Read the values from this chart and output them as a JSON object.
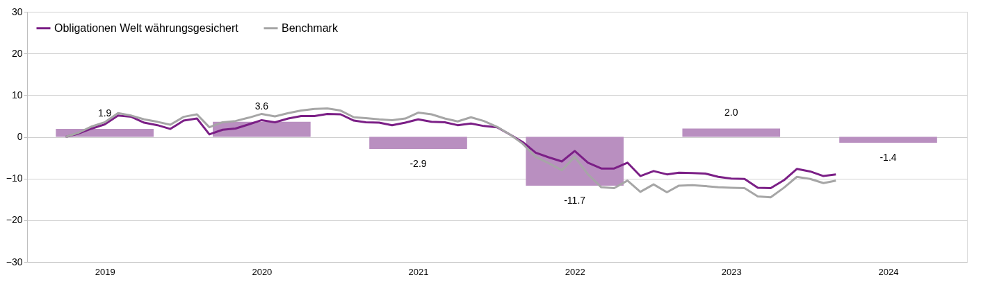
{
  "chart_data": {
    "type": "bar",
    "xlim": [
      "2019-01-01",
      "2025-01-01"
    ],
    "xticks": [
      {
        "value": "2019-07",
        "label": "2019"
      },
      {
        "value": "2020-07",
        "label": "2020"
      },
      {
        "value": "2021-07",
        "label": "2021"
      },
      {
        "value": "2022-07",
        "label": "2022"
      },
      {
        "value": "2023-07",
        "label": "2023"
      },
      {
        "value": "2024-07",
        "label": "2024"
      }
    ],
    "ylim": [
      -30,
      30
    ],
    "yticks": [
      -30,
      -20,
      -10,
      0,
      10,
      20,
      30
    ],
    "grid": "y",
    "legend": "top left",
    "series": [
      {
        "color": "#b98fc0",
        "x": [
          "2019-07",
          "2020-07",
          "2021-07",
          "2022-07",
          "2023-07",
          "2024-07"
        ],
        "values": [
          1.9,
          3.6,
          -2.9,
          -11.7,
          2.0,
          -1.4
        ],
        "value_labels": [
          "1.9",
          "3.6",
          "-2.9",
          "-11.7",
          "2.0",
          "-1.4"
        ]
      },
      {
        "type": "line",
        "name": "Obligationen Welt währungsgesichert",
        "color": "#7b1f86",
        "x": [
          "2019-04",
          "2019-05",
          "2019-06",
          "2019-07",
          "2019-08",
          "2019-09",
          "2019-10",
          "2019-11",
          "2019-12",
          "2020-01",
          "2020-02",
          "2020-03",
          "2020-04",
          "2020-05",
          "2020-06",
          "2020-07",
          "2020-08",
          "2020-09",
          "2020-10",
          "2020-11",
          "2020-12",
          "2021-01",
          "2021-02",
          "2021-03",
          "2021-04",
          "2021-05",
          "2021-06",
          "2021-07",
          "2021-08",
          "2021-09",
          "2021-10",
          "2021-11",
          "2021-12",
          "2022-01",
          "2022-02",
          "2022-03",
          "2022-04",
          "2022-05",
          "2022-06",
          "2022-07",
          "2022-08",
          "2022-09",
          "2022-10",
          "2022-11",
          "2022-12",
          "2023-01",
          "2023-02",
          "2023-03",
          "2023-04",
          "2023-05",
          "2023-06",
          "2023-07",
          "2023-08",
          "2023-09",
          "2023-10",
          "2023-11",
          "2023-12",
          "2024-01",
          "2024-02",
          "2024-03"
        ],
        "values": [
          0,
          0.8,
          2.0,
          3.0,
          5.1,
          4.8,
          3.4,
          2.8,
          1.9,
          3.9,
          4.4,
          0.6,
          1.7,
          2.0,
          3.0,
          4.0,
          3.5,
          4.4,
          5.0,
          5.0,
          5.5,
          5.4,
          3.9,
          3.5,
          3.4,
          2.8,
          3.4,
          4.2,
          3.6,
          3.5,
          2.8,
          3.2,
          2.6,
          2.3,
          0.5,
          -1.2,
          -3.8,
          -4.9,
          -5.9,
          -3.4,
          -6.2,
          -7.6,
          -7.6,
          -6.2,
          -9.4,
          -8.2,
          -9.0,
          -8.6,
          -8.7,
          -8.8,
          -9.6,
          -10.0,
          -10.1,
          -12.2,
          -12.3,
          -10.4,
          -7.7,
          -8.3,
          -9.4,
          -9.0
        ]
      },
      {
        "type": "line",
        "name": "Benchmark",
        "color": "#a6a6a6",
        "x": [
          "2019-04",
          "2019-05",
          "2019-06",
          "2019-07",
          "2019-08",
          "2019-09",
          "2019-10",
          "2019-11",
          "2019-12",
          "2020-01",
          "2020-02",
          "2020-03",
          "2020-04",
          "2020-05",
          "2020-06",
          "2020-07",
          "2020-08",
          "2020-09",
          "2020-10",
          "2020-11",
          "2020-12",
          "2021-01",
          "2021-02",
          "2021-03",
          "2021-04",
          "2021-05",
          "2021-06",
          "2021-07",
          "2021-08",
          "2021-09",
          "2021-10",
          "2021-11",
          "2021-12",
          "2022-01",
          "2022-02",
          "2022-03",
          "2022-04",
          "2022-05",
          "2022-06",
          "2022-07",
          "2022-08",
          "2022-09",
          "2022-10",
          "2022-11",
          "2022-12",
          "2023-01",
          "2023-02",
          "2023-03",
          "2023-04",
          "2023-05",
          "2023-06",
          "2023-07",
          "2023-08",
          "2023-09",
          "2023-10",
          "2023-11",
          "2023-12",
          "2024-01",
          "2024-02",
          "2024-03"
        ],
        "values": [
          0,
          1.0,
          2.5,
          3.5,
          5.7,
          5.1,
          4.2,
          3.6,
          2.9,
          4.8,
          5.4,
          2.3,
          3.5,
          3.8,
          4.6,
          5.5,
          4.9,
          5.7,
          6.3,
          6.7,
          6.8,
          6.3,
          4.7,
          4.5,
          4.2,
          4.0,
          4.4,
          5.8,
          5.4,
          4.4,
          3.7,
          4.7,
          3.8,
          2.4,
          0.5,
          -1.6,
          -4.8,
          -6.3,
          -8.0,
          -4.8,
          -9.0,
          -12.1,
          -12.3,
          -10.5,
          -13.2,
          -11.4,
          -13.3,
          -11.7,
          -11.6,
          -11.8,
          -12.1,
          -12.2,
          -12.3,
          -14.3,
          -14.5,
          -12.2,
          -9.6,
          -10.1,
          -11.1,
          -10.5
        ]
      }
    ]
  }
}
